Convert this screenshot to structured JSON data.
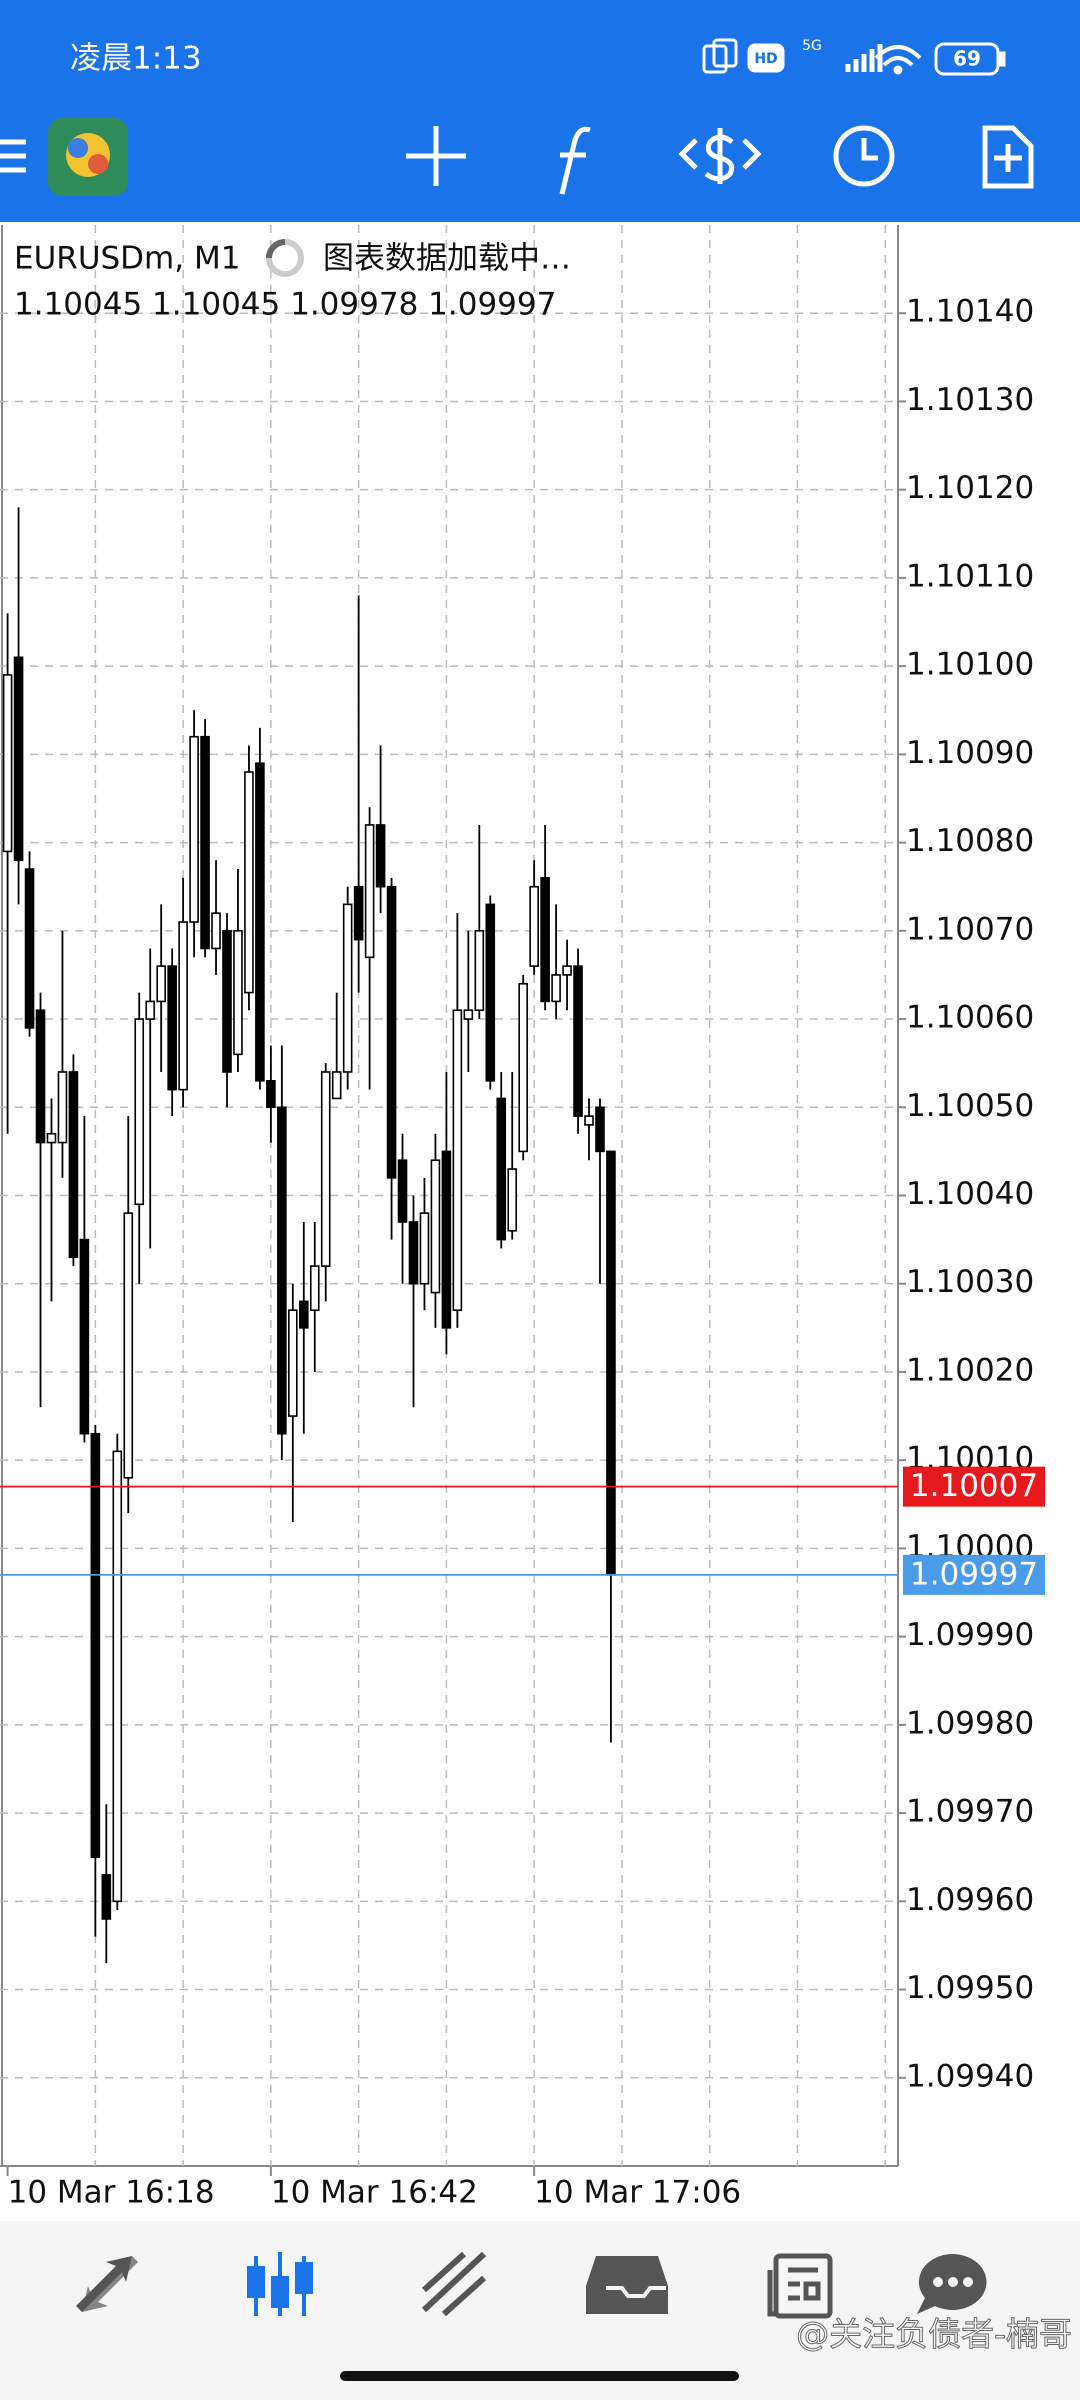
{
  "status_bar": {
    "time": "凌晨1:13",
    "hd": "HD",
    "network": "5G",
    "battery": "69"
  },
  "chart_header": {
    "symbol": "EURUSDm, M1",
    "loading": "图表数据加载中…",
    "ohlc": "1.10045 1.10045 1.09978 1.09997"
  },
  "chart_data": {
    "type": "candlestick",
    "categories": [
      "10 Mar 16:18",
      null,
      null,
      null,
      null,
      null,
      null,
      null,
      null,
      null,
      null,
      null,
      null,
      null,
      null,
      null,
      null,
      null,
      null,
      null,
      null,
      null,
      null,
      null,
      "10 Mar 16:42",
      null,
      null,
      null,
      null,
      null,
      null,
      null,
      null,
      null,
      null,
      null,
      null,
      null,
      null,
      null,
      null,
      null,
      null,
      null,
      null,
      null,
      null,
      null,
      "10 Mar 17:06",
      null,
      null,
      null,
      null,
      null,
      null,
      null
    ],
    "open": [
      1.10079,
      1.10101,
      1.10077,
      1.10061,
      1.10046,
      1.10046,
      1.10054,
      1.10035,
      1.10013,
      1.09963,
      1.0996,
      1.10008,
      1.10039,
      1.1006,
      1.10062,
      1.10066,
      1.10052,
      1.10071,
      1.10092,
      1.10068,
      1.1007,
      1.10056,
      1.10063,
      1.10089,
      1.10053,
      1.1005,
      1.10015,
      1.10028,
      1.10027,
      1.10032,
      1.10051,
      1.10054,
      1.10075,
      1.10067,
      1.10082,
      1.10075,
      1.10044,
      1.10037,
      1.1003,
      1.10029,
      1.10045,
      1.10027,
      1.1006,
      1.10061,
      1.10073,
      1.10051,
      1.10036,
      1.10045,
      1.10066,
      1.10076,
      1.10062,
      1.10065,
      1.10066,
      1.10048,
      1.1005,
      1.10045
    ],
    "high": [
      1.10106,
      1.10118,
      1.10079,
      1.10063,
      1.10051,
      1.1007,
      1.10056,
      1.10049,
      1.10014,
      1.09971,
      1.10013,
      1.10049,
      1.10063,
      1.10068,
      1.10073,
      1.10068,
      1.10076,
      1.10095,
      1.10094,
      1.10078,
      1.10072,
      1.10077,
      1.10091,
      1.10093,
      1.10057,
      1.10057,
      1.1003,
      1.10037,
      1.10037,
      1.10055,
      1.10063,
      1.10075,
      1.10108,
      1.10084,
      1.10091,
      1.10076,
      1.10047,
      1.1004,
      1.10042,
      1.10047,
      1.10054,
      1.10072,
      1.1007,
      1.10082,
      1.10074,
      1.10054,
      1.10054,
      1.10065,
      1.10078,
      1.10082,
      1.10073,
      1.10069,
      1.10068,
      1.10051,
      1.10051,
      1.10045
    ],
    "low": [
      1.10047,
      1.10073,
      1.10058,
      1.10016,
      1.10028,
      1.10042,
      1.10032,
      1.10012,
      1.09956,
      1.09953,
      1.09959,
      1.10004,
      1.1003,
      1.10034,
      1.10054,
      1.10049,
      1.1005,
      1.10067,
      1.10067,
      1.10065,
      1.1005,
      1.10054,
      1.10061,
      1.10052,
      1.10046,
      1.1001,
      1.10003,
      1.10013,
      1.1002,
      1.10028,
      1.10051,
      1.10052,
      1.10063,
      1.10052,
      1.10072,
      1.10035,
      1.1003,
      1.10016,
      1.10027,
      1.10025,
      1.10022,
      1.10025,
      1.10054,
      1.1006,
      1.10052,
      1.10034,
      1.10035,
      1.10044,
      1.10065,
      1.10061,
      1.1006,
      1.10061,
      1.10047,
      1.10044,
      1.1003,
      1.09978
    ],
    "close": [
      1.10099,
      1.10078,
      1.10059,
      1.10046,
      1.10047,
      1.10054,
      1.10033,
      1.10013,
      1.09965,
      1.09958,
      1.10011,
      1.10038,
      1.1006,
      1.10062,
      1.10066,
      1.10052,
      1.10071,
      1.10092,
      1.10068,
      1.10072,
      1.10054,
      1.1007,
      1.10088,
      1.10053,
      1.1005,
      1.10013,
      1.10027,
      1.10025,
      1.10032,
      1.10054,
      1.10054,
      1.10073,
      1.10069,
      1.10082,
      1.10075,
      1.10042,
      1.10037,
      1.1003,
      1.10038,
      1.10044,
      1.10025,
      1.10061,
      1.10061,
      1.1007,
      1.10053,
      1.10035,
      1.10043,
      1.10064,
      1.10075,
      1.10062,
      1.10065,
      1.10066,
      1.10049,
      1.10049,
      1.10045,
      1.09997
    ],
    "up_color": "#ffffff",
    "down_color": "#000000",
    "ylim": [
      1.0993,
      1.1015
    ],
    "yticks": [
      {
        "value": 1.0994,
        "label": "1.09940"
      },
      {
        "value": 1.0995,
        "label": "1.09950"
      },
      {
        "value": 1.0996,
        "label": "1.09960"
      },
      {
        "value": 1.0997,
        "label": "1.09970"
      },
      {
        "value": 1.0998,
        "label": "1.09980"
      },
      {
        "value": 1.0999,
        "label": "1.09990"
      },
      {
        "value": 1.1,
        "label": "1.10000"
      },
      {
        "value": 1.1001,
        "label": "1.10010"
      },
      {
        "value": 1.1002,
        "label": "1.10020"
      },
      {
        "value": 1.1003,
        "label": "1.10030"
      },
      {
        "value": 1.1004,
        "label": "1.10040"
      },
      {
        "value": 1.1005,
        "label": "1.10050"
      },
      {
        "value": 1.1006,
        "label": "1.10060"
      },
      {
        "value": 1.1007,
        "label": "1.10070"
      },
      {
        "value": 1.1008,
        "label": "1.10080"
      },
      {
        "value": 1.1009,
        "label": "1.10090"
      },
      {
        "value": 1.101,
        "label": "1.10100"
      },
      {
        "value": 1.1011,
        "label": "1.10110"
      },
      {
        "value": 1.1012,
        "label": "1.10120"
      },
      {
        "value": 1.1013,
        "label": "1.10130"
      },
      {
        "value": 1.1014,
        "label": "1.10140"
      }
    ],
    "grid": true,
    "price_lines": [
      {
        "value": 1.10007,
        "color": "#e8191c"
      },
      {
        "value": 1.09997,
        "color": "#4a9bea"
      }
    ]
  },
  "watermark": "@关注负债者-楠哥"
}
